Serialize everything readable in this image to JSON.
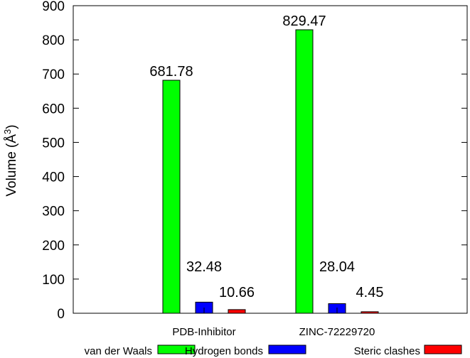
{
  "chart_data": {
    "type": "bar",
    "categories": [
      "PDB-Inhibitor",
      "ZINC-72229720"
    ],
    "series": [
      {
        "name": "van der Waals",
        "color": "#00ff00",
        "values": [
          681.78,
          829.47
        ],
        "labels": [
          "681.78",
          "829.47"
        ]
      },
      {
        "name": "Hydrogen bonds",
        "color": "#0000ff",
        "values": [
          32.48,
          28.04
        ],
        "labels": [
          "32.48",
          "28.04"
        ]
      },
      {
        "name": "Steric clashes",
        "color": "#ff0000",
        "values": [
          10.66,
          4.45
        ],
        "labels": [
          "10.66",
          "4.45"
        ]
      }
    ],
    "ylabel": "Volume (Å",
    "ylabel_sup": "3",
    "ylabel_end": ")",
    "ylim": [
      0,
      900
    ],
    "yticks": [
      "0",
      "100",
      "200",
      "300",
      "400",
      "500",
      "600",
      "700",
      "800",
      "900"
    ],
    "grid": false,
    "legend": "bottom"
  }
}
